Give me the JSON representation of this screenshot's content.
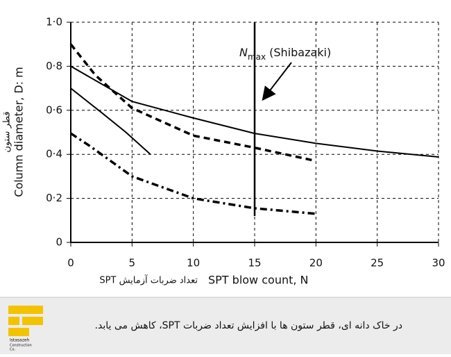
{
  "chart_data": {
    "type": "line",
    "ylabel": "Column diameter, D: m",
    "ylabel_fa": "قطر ستون",
    "xlabel": "SPT blow count, N",
    "xlabel_fa": "تعداد ضربات آزمایش SPT",
    "xlim": [
      0,
      30
    ],
    "ylim": [
      0,
      1
    ],
    "xticks": [
      0,
      5,
      10,
      15,
      20,
      25,
      30
    ],
    "yticks": [
      {
        "value": 0,
        "label": "0"
      },
      {
        "value": 0.2,
        "label": "0·2"
      },
      {
        "value": 0.4,
        "label": "0·4"
      },
      {
        "value": 0.6,
        "label": "0·6"
      },
      {
        "value": 0.8,
        "label": "0·8"
      },
      {
        "value": 1.0,
        "label": "1·0"
      }
    ],
    "grid": true,
    "series": [
      {
        "color": "#000000",
        "dash": "solid",
        "x": [
          0,
          5,
          10,
          15,
          20,
          25,
          30
        ],
        "values": [
          0.8,
          0.64,
          0.565,
          0.495,
          0.45,
          0.415,
          0.388
        ]
      },
      {
        "color": "#000000",
        "dash": "solid",
        "x": [
          0,
          2.5,
          4.5,
          6.5
        ],
        "values": [
          0.7,
          0.59,
          0.5,
          0.4
        ]
      },
      {
        "color": "#000000",
        "dash": "dashed",
        "x": [
          0,
          2,
          5,
          10,
          15,
          20
        ],
        "values": [
          0.9,
          0.76,
          0.61,
          0.485,
          0.43,
          0.37
        ]
      },
      {
        "color": "#000000",
        "dash": "dashdot",
        "x": [
          0,
          1.5,
          5,
          10,
          15,
          20
        ],
        "values": [
          0.495,
          0.44,
          0.3,
          0.2,
          0.155,
          0.13
        ]
      }
    ],
    "annotation": {
      "text": "N",
      "subscript": "max",
      "suffix": "(Shibazaki)",
      "x": 15,
      "y_bottom": 0.12
    }
  },
  "caption": "در خاک دانه ای، قطر ستون ها با افزایش تعداد ضربات SPT، کاهش می یابد.",
  "logo": {
    "name": "Istasazeh",
    "line2": "Construction",
    "line3": "Co."
  }
}
